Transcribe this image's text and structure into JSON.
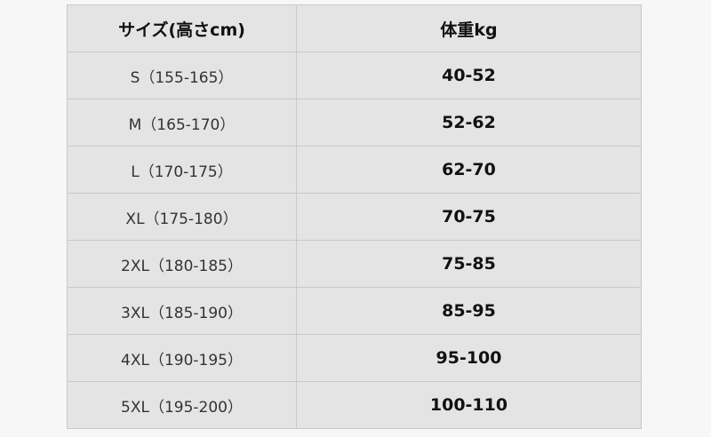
{
  "table": {
    "headers": [
      "サイズ(高さcm)",
      "体重kg"
    ],
    "rows": [
      {
        "size": "S（155-165）",
        "weight": "40-52"
      },
      {
        "size": "M（165-170）",
        "weight": "52-62"
      },
      {
        "size": "L（170-175）",
        "weight": "62-70"
      },
      {
        "size": "XL（175-180）",
        "weight": "70-75"
      },
      {
        "size": "2XL（180-185）",
        "weight": "75-85"
      },
      {
        "size": "3XL（185-190）",
        "weight": "85-95"
      },
      {
        "size": "4XL（190-195）",
        "weight": "95-100"
      },
      {
        "size": "5XL（195-200）",
        "weight": "100-110"
      }
    ]
  }
}
